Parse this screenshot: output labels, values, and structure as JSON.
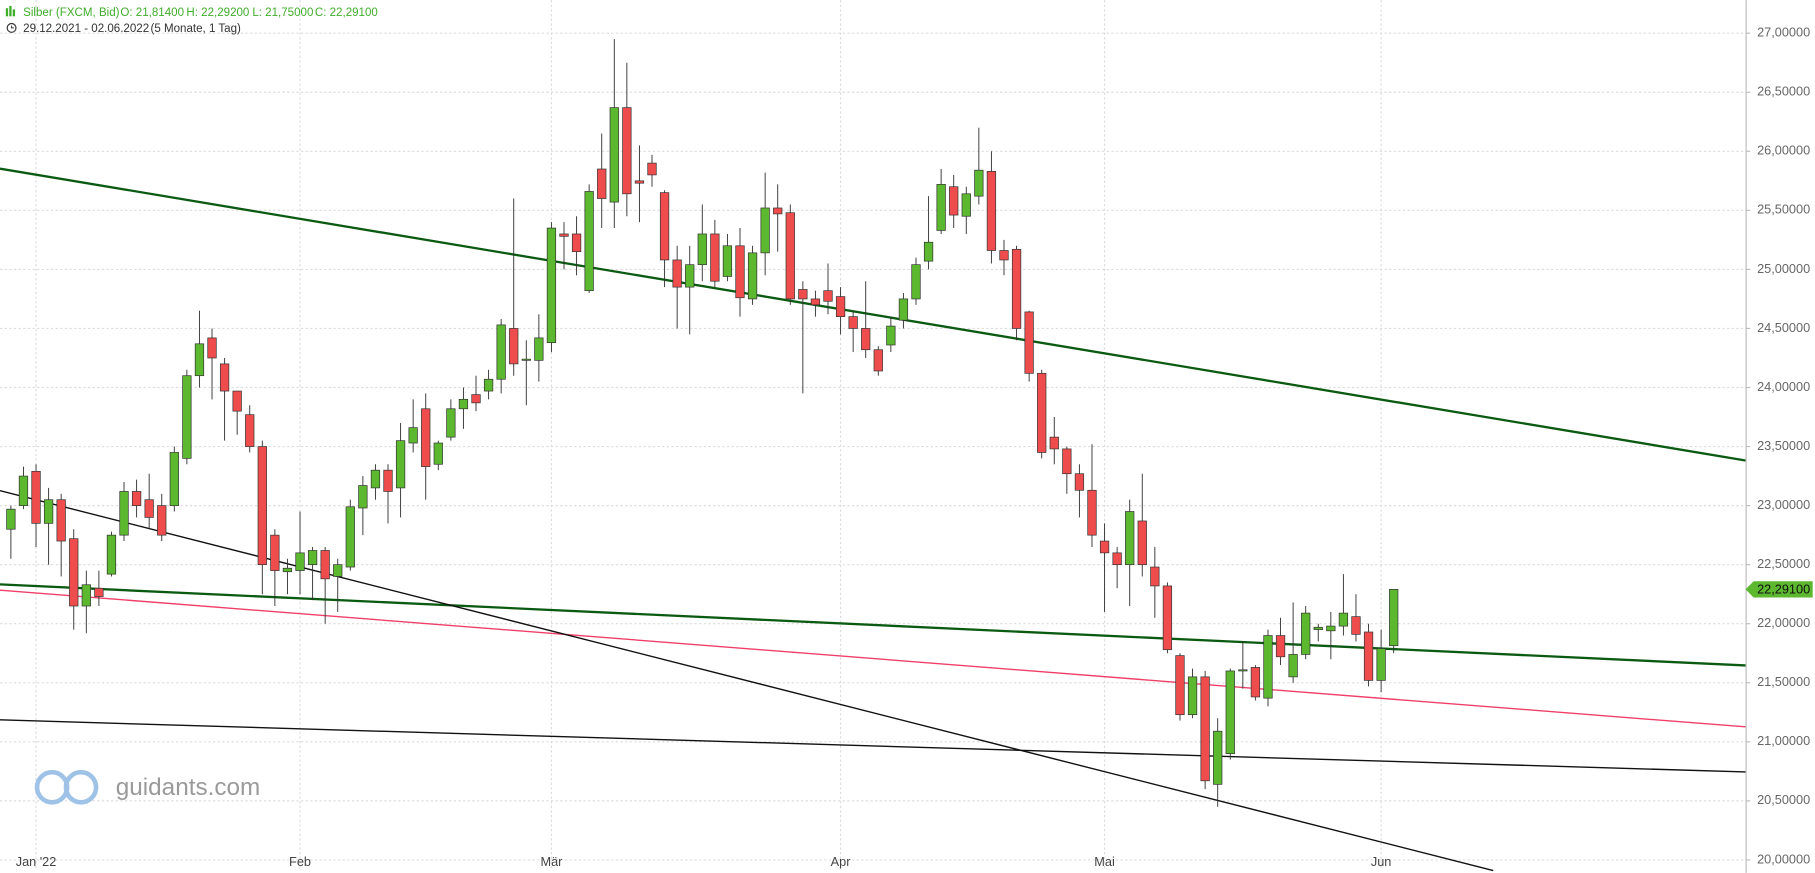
{
  "chart_data": {
    "type": "candlestick",
    "title": "Silber (FXCM, Bid)",
    "ohlc_header": [
      "O: 21,81400",
      "H: 22,29200",
      "L: 21,75000",
      "C: 22,29100"
    ],
    "subtitle": "29.12.2021 - 02.06.2022",
    "subtitle_note": "(5 Monate, 1 Tag)",
    "watermark": "guidants.com",
    "categories": [
      null,
      null,
      "Jan '22",
      null,
      null,
      null,
      null,
      null,
      null,
      null,
      null,
      null,
      null,
      null,
      null,
      null,
      null,
      null,
      null,
      null,
      null,
      null,
      null,
      "Feb",
      null,
      null,
      null,
      null,
      null,
      null,
      null,
      null,
      null,
      null,
      null,
      null,
      null,
      null,
      null,
      null,
      null,
      null,
      null,
      "Mär",
      null,
      null,
      null,
      null,
      null,
      null,
      null,
      null,
      null,
      null,
      null,
      null,
      null,
      null,
      null,
      null,
      null,
      null,
      null,
      null,
      null,
      null,
      "Apr",
      null,
      null,
      null,
      null,
      null,
      null,
      null,
      null,
      null,
      null,
      null,
      null,
      null,
      null,
      null,
      null,
      null,
      null,
      null,
      null,
      "Mai",
      null,
      null,
      null,
      null,
      null,
      null,
      null,
      null,
      null,
      null,
      null,
      null,
      null,
      null,
      null,
      null,
      null,
      null,
      null,
      null,
      null,
      "Jun",
      null
    ],
    "open": [
      22.8,
      23.0,
      23.29,
      22.85,
      23.05,
      22.72,
      22.15,
      22.3,
      22.42,
      22.75,
      23.12,
      23.05,
      23.0,
      23.0,
      23.4,
      24.1,
      24.42,
      24.2,
      23.97,
      23.77,
      23.5,
      22.75,
      22.44,
      22.45,
      22.5,
      22.62,
      22.4,
      22.48,
      22.98,
      23.15,
      23.3,
      23.15,
      23.53,
      23.82,
      23.35,
      23.58,
      23.82,
      23.94,
      23.97,
      24.07,
      24.5,
      24.23,
      24.23,
      24.38,
      25.3,
      25.3,
      24.82,
      25.85,
      25.57,
      26.37,
      25.75,
      25.9,
      25.65,
      25.08,
      24.85,
      25.04,
      25.3,
      24.94,
      25.2,
      24.75,
      25.14,
      25.52,
      25.48,
      24.83,
      24.75,
      24.82,
      24.77,
      24.6,
      24.5,
      24.32,
      24.36,
      24.57,
      24.75,
      25.07,
      25.33,
      25.7,
      25.45,
      25.62,
      25.83,
      25.16,
      25.17,
      24.64,
      24.12,
      23.58,
      23.48,
      23.27,
      23.13,
      22.7,
      22.6,
      22.5,
      22.87,
      22.48,
      22.32,
      21.73,
      21.23,
      21.55,
      20.64,
      20.9,
      21.6,
      21.63,
      21.37,
      21.9,
      21.55,
      21.74,
      21.95,
      21.94,
      21.98,
      22.06,
      21.93,
      21.52,
      21.814
    ],
    "high": [
      23.0,
      23.33,
      23.35,
      23.15,
      23.1,
      22.8,
      22.45,
      22.45,
      22.78,
      23.2,
      23.22,
      23.27,
      23.1,
      23.5,
      24.15,
      24.65,
      24.5,
      24.25,
      23.95,
      23.85,
      23.55,
      22.8,
      22.55,
      22.95,
      22.65,
      22.65,
      22.55,
      23.05,
      23.25,
      23.35,
      23.35,
      23.7,
      23.9,
      23.95,
      23.55,
      23.9,
      24.0,
      24.1,
      24.15,
      24.58,
      25.6,
      24.4,
      24.62,
      25.4,
      25.4,
      25.45,
      25.72,
      26.15,
      26.95,
      26.75,
      26.05,
      25.97,
      25.67,
      25.2,
      25.2,
      25.55,
      25.42,
      25.3,
      25.35,
      25.2,
      25.82,
      25.72,
      25.55,
      24.9,
      24.82,
      25.05,
      24.85,
      24.65,
      24.9,
      24.35,
      24.6,
      24.8,
      25.1,
      25.62,
      25.85,
      25.8,
      25.7,
      26.2,
      26.0,
      25.25,
      25.2,
      24.65,
      24.15,
      23.75,
      23.5,
      23.35,
      23.52,
      22.85,
      22.65,
      23.05,
      23.27,
      22.65,
      22.35,
      21.75,
      21.62,
      21.6,
      21.2,
      21.62,
      21.85,
      21.65,
      21.95,
      22.05,
      22.18,
      22.15,
      22.0,
      22.1,
      22.42,
      22.25,
      22.0,
      21.95,
      22.292
    ],
    "low": [
      22.55,
      22.97,
      22.65,
      22.5,
      22.4,
      21.95,
      21.92,
      22.15,
      22.4,
      22.7,
      22.9,
      22.8,
      22.7,
      22.95,
      23.35,
      24.0,
      23.9,
      23.55,
      23.6,
      23.45,
      22.25,
      22.15,
      22.25,
      22.25,
      22.2,
      22.0,
      22.1,
      22.45,
      22.75,
      23.05,
      22.85,
      22.9,
      23.45,
      23.05,
      23.3,
      23.55,
      23.65,
      23.8,
      23.9,
      23.95,
      24.1,
      23.85,
      24.05,
      24.3,
      25.0,
      24.95,
      24.8,
      25.35,
      25.35,
      25.45,
      25.4,
      25.7,
      24.85,
      24.5,
      24.45,
      24.9,
      24.85,
      24.9,
      24.6,
      24.7,
      24.95,
      25.15,
      24.7,
      23.95,
      24.6,
      24.62,
      24.45,
      24.3,
      24.25,
      24.1,
      24.3,
      24.5,
      24.7,
      25.0,
      25.3,
      25.35,
      25.3,
      25.55,
      25.05,
      24.95,
      24.4,
      24.05,
      23.4,
      23.35,
      23.1,
      22.9,
      22.65,
      22.1,
      22.3,
      22.15,
      22.4,
      22.05,
      21.75,
      21.18,
      21.2,
      20.6,
      20.45,
      20.85,
      21.45,
      21.35,
      21.3,
      21.65,
      21.5,
      21.7,
      21.85,
      21.7,
      21.9,
      21.85,
      21.47,
      21.42,
      21.75
    ],
    "close": [
      22.97,
      23.25,
      22.85,
      23.05,
      22.7,
      22.15,
      22.33,
      22.23,
      22.75,
      23.12,
      23.0,
      22.9,
      22.75,
      23.45,
      24.1,
      24.37,
      24.25,
      23.97,
      23.8,
      23.5,
      22.5,
      22.45,
      22.47,
      22.6,
      22.62,
      22.38,
      22.5,
      22.99,
      23.17,
      23.3,
      23.12,
      23.55,
      23.66,
      23.33,
      23.53,
      23.82,
      23.9,
      23.87,
      24.07,
      24.53,
      24.2,
      24.24,
      24.42,
      25.35,
      25.28,
      25.15,
      25.66,
      25.6,
      26.37,
      25.64,
      25.73,
      25.8,
      25.08,
      24.85,
      25.04,
      25.3,
      24.9,
      25.2,
      24.76,
      25.14,
      25.52,
      25.47,
      24.75,
      24.75,
      24.7,
      24.73,
      24.6,
      24.5,
      24.32,
      24.14,
      24.52,
      24.75,
      25.04,
      25.23,
      25.72,
      25.46,
      25.64,
      25.84,
      25.16,
      25.08,
      24.5,
      24.12,
      23.45,
      23.48,
      23.27,
      23.13,
      22.75,
      22.6,
      22.5,
      22.95,
      22.5,
      22.32,
      21.78,
      21.23,
      21.55,
      20.67,
      21.09,
      21.6,
      21.61,
      21.38,
      21.9,
      21.72,
      21.74,
      22.09,
      21.97,
      21.98,
      22.09,
      21.91,
      21.52,
      21.79,
      22.291
    ],
    "up_color": "#5cb82e",
    "down_color": "#ef4d4d",
    "xlim": [
      -0.866,
      137.99
    ],
    "ylim": [
      19.91,
      27.28
    ],
    "yticks": [
      {
        "value": 20,
        "label": "20,00000"
      },
      {
        "value": 20.5,
        "label": "20,50000"
      },
      {
        "value": 21,
        "label": "21,00000"
      },
      {
        "value": 21.5,
        "label": "21,50000"
      },
      {
        "value": 22,
        "label": "22,00000"
      },
      {
        "value": 22.5,
        "label": "22,50000"
      },
      {
        "value": 23,
        "label": "23,00000"
      },
      {
        "value": 23.5,
        "label": "23,50000"
      },
      {
        "value": 24,
        "label": "24,00000"
      },
      {
        "value": 24.5,
        "label": "24,50000"
      },
      {
        "value": 25,
        "label": "25,00000"
      },
      {
        "value": 25.5,
        "label": "25,50000"
      },
      {
        "value": 26,
        "label": "26,00000"
      },
      {
        "value": 26.5,
        "label": "26,50000"
      },
      {
        "value": 27,
        "label": "27,00000"
      }
    ],
    "grid": true,
    "last_price": {
      "value": 22.291,
      "label": "22,29100"
    },
    "trendlines": [
      {
        "color": "#0b5a12",
        "width": 2,
        "points": [
          [
            -0.866,
            25.853
          ],
          [
            137.99,
            23.382
          ]
        ]
      },
      {
        "color": "#0b5a12",
        "width": 2,
        "points": [
          [
            -0.866,
            22.333
          ],
          [
            137.99,
            21.647
          ]
        ]
      },
      {
        "color": "#f0406a",
        "width": 1.2,
        "points": [
          [
            -0.866,
            22.284
          ],
          [
            137.99,
            21.127
          ]
        ]
      },
      {
        "color": "#111111",
        "width": 1.2,
        "points": [
          [
            -0.866,
            21.186
          ],
          [
            137.99,
            20.745
          ]
        ]
      },
      {
        "color": "#111111",
        "width": 1.2,
        "points": [
          [
            -0.866,
            23.127
          ],
          [
            117.92,
            19.91
          ]
        ]
      }
    ]
  }
}
